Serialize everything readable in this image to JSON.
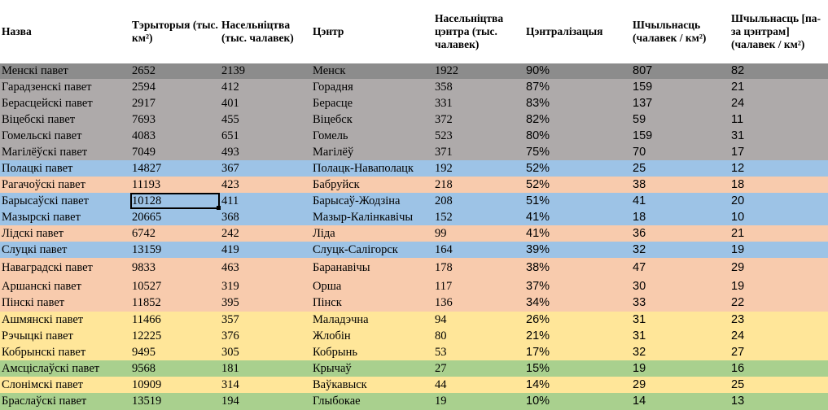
{
  "headers": {
    "name": "Назва",
    "area": "Тэрыторыя (тыс. км²)",
    "pop": "Насельніцтва (тыс. чалавек)",
    "center": "Цэнтр",
    "center_pop": "Насельніцтва цэнтра (тыс. чалавек)",
    "central": "Цэнтралізацыя",
    "density": "Шчыльнасць (чалавек / км²)",
    "density_out": "Шчыльнасць [па-за цэнтрам] (чалавек / км²)"
  },
  "colors": {
    "dark_gray": "#8c8c8c",
    "gray": "#aeaaaa",
    "blue": "#9dc3e6",
    "peach": "#f8cbad",
    "yellow": "#ffe699",
    "green": "#a9d08e",
    "header": "#ffffff"
  },
  "rows": [
    {
      "name": "Менскі павет",
      "area": "2652",
      "pop": "2139",
      "center": "Менск",
      "center_pop": "1922",
      "central": "90%",
      "density": "807",
      "density_out": "82",
      "color": "dark_gray"
    },
    {
      "name": "Гарадзенскі павет",
      "area": "2594",
      "pop": "412",
      "center": "Горадня",
      "center_pop": "358",
      "central": "87%",
      "density": "159",
      "density_out": "21",
      "color": "gray"
    },
    {
      "name": "Берасцейскі павет",
      "area": "2917",
      "pop": "401",
      "center": "Берасце",
      "center_pop": "331",
      "central": "83%",
      "density": "137",
      "density_out": "24",
      "color": "gray"
    },
    {
      "name": "Віцебскі павет",
      "area": "7693",
      "pop": "455",
      "center": "Віцебск",
      "center_pop": "372",
      "central": "82%",
      "density": "59",
      "density_out": "11",
      "color": "gray"
    },
    {
      "name": "Гомельскі павет",
      "area": "4083",
      "pop": "651",
      "center": "Гомель",
      "center_pop": "523",
      "central": "80%",
      "density": "159",
      "density_out": "31",
      "color": "gray"
    },
    {
      "name": "Магілёўскі павет",
      "area": "7049",
      "pop": "493",
      "center": "Магілёў",
      "center_pop": "371",
      "central": "75%",
      "density": "70",
      "density_out": "17",
      "color": "gray"
    },
    {
      "name": "Полацкі павет",
      "area": "14827",
      "pop": "367",
      "center": "Полацк-Наваполацк",
      "center_pop": "192",
      "central": "52%",
      "density": "25",
      "density_out": "12",
      "color": "blue"
    },
    {
      "name": "Рагачоўскі павет",
      "area": "11193",
      "pop": "423",
      "center": "Бабруйск",
      "center_pop": "218",
      "central": "52%",
      "density": "38",
      "density_out": "18",
      "color": "peach"
    },
    {
      "name": "Барысаўскі павет",
      "area": "10128",
      "pop": "411",
      "center": "Барысаў-Жодзіна",
      "center_pop": "208",
      "central": "51%",
      "density": "41",
      "density_out": "20",
      "color": "blue"
    },
    {
      "name": "Мазырскі павет",
      "area": "20665",
      "pop": "368",
      "center": "Мазыр-Калінкавічы",
      "center_pop": "152",
      "central": "41%",
      "density": "18",
      "density_out": "10",
      "color": "blue"
    },
    {
      "name": "Лідскі павет",
      "area": "6742",
      "pop": "242",
      "center": "Ліда",
      "center_pop": "99",
      "central": "41%",
      "density": "36",
      "density_out": "21",
      "color": "peach"
    },
    {
      "name": "Слуцкі павет",
      "area": "13159",
      "pop": "419",
      "center": "Слуцк-Салігорск",
      "center_pop": "164",
      "central": "39%",
      "density": "32",
      "density_out": "19",
      "color": "blue"
    },
    {
      "name": "Наваградскі павет",
      "area": "9833",
      "pop": "463",
      "center": "Баранавічы",
      "center_pop": "178",
      "central": "38%",
      "density": "47",
      "density_out": "29",
      "color": "peach"
    },
    {
      "name": "Аршанскі павет",
      "area": "10527",
      "pop": "319",
      "center": "Орша",
      "center_pop": "117",
      "central": "37%",
      "density": "30",
      "density_out": "19",
      "color": "peach"
    },
    {
      "name": "Пінскі павет",
      "area": "11852",
      "pop": "395",
      "center": "Пінск",
      "center_pop": "136",
      "central": "34%",
      "density": "33",
      "density_out": "22",
      "color": "peach"
    },
    {
      "name": "Ашмянскі павет",
      "area": "11466",
      "pop": "357",
      "center": "Маладэчна",
      "center_pop": "94",
      "central": "26%",
      "density": "31",
      "density_out": "23",
      "color": "yellow"
    },
    {
      "name": "Рэчыцкі павет",
      "area": "12225",
      "pop": "376",
      "center": "Жлобін",
      "center_pop": "80",
      "central": "21%",
      "density": "31",
      "density_out": "24",
      "color": "yellow"
    },
    {
      "name": "Кобрынскі павет",
      "area": "9495",
      "pop": "305",
      "center": "Кобрынь",
      "center_pop": "53",
      "central": "17%",
      "density": "32",
      "density_out": "27",
      "color": "yellow"
    },
    {
      "name": "Амсціслаўскі павет",
      "area": "9568",
      "pop": "181",
      "center": "Крычаў",
      "center_pop": "27",
      "central": "15%",
      "density": "19",
      "density_out": "16",
      "color": "green"
    },
    {
      "name": "Слонімскі павет",
      "area": "10909",
      "pop": "314",
      "center": "Ваўкавыск",
      "center_pop": "44",
      "central": "14%",
      "density": "29",
      "density_out": "25",
      "color": "yellow"
    },
    {
      "name": "Браслаўскі павет",
      "area": "13519",
      "pop": "194",
      "center": "Глыбокае",
      "center_pop": "19",
      "central": "10%",
      "density": "14",
      "density_out": "13",
      "color": "green"
    }
  ],
  "selected_cell": {
    "row": 8,
    "column": "area"
  }
}
